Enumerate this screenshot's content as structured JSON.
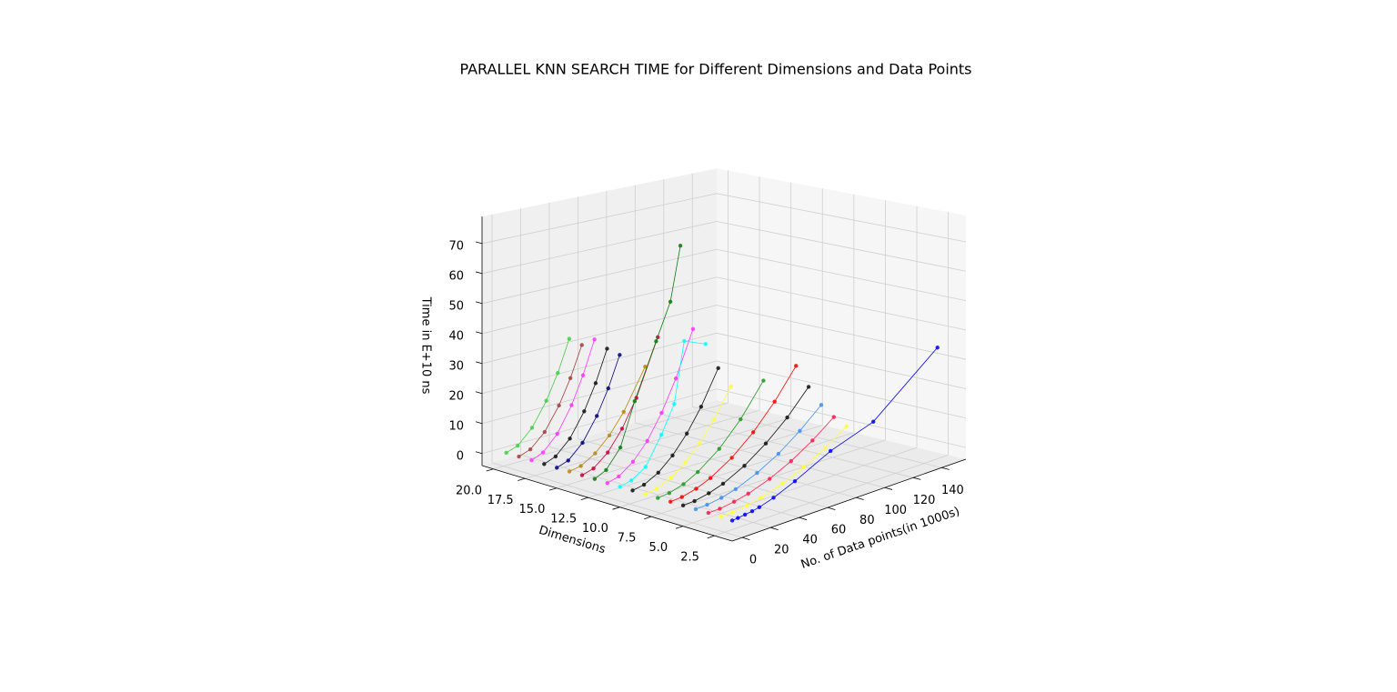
{
  "chart_data": {
    "type": "line3d",
    "title": "PARALLEL KNN SEARCH TIME for Different Dimensions and Data Points",
    "xlabel": "No. of Data points(in 1000s)",
    "ylabel": "Dimensions",
    "zlabel": "Time in E+10 ns",
    "xlim": [
      -7,
      157
    ],
    "xticks": [
      0,
      20,
      40,
      60,
      80,
      100,
      120,
      140
    ],
    "ylim": [
      1.1,
      20.9
    ],
    "yticks": [
      {
        "value": 2.5,
        "label": "2.5"
      },
      {
        "value": 5,
        "label": "5.0"
      },
      {
        "value": 7.5,
        "label": "7.5"
      },
      {
        "value": 10,
        "label": "10.0"
      },
      {
        "value": 12.5,
        "label": "12.5"
      },
      {
        "value": 15,
        "label": "15.0"
      },
      {
        "value": 17.5,
        "label": "17.5"
      },
      {
        "value": 20,
        "label": "20.0"
      }
    ],
    "zlim": [
      -4,
      79
    ],
    "zticks": [
      0,
      10,
      20,
      30,
      40,
      50,
      60,
      70
    ],
    "grid": true,
    "series": [
      {
        "dimension": 2,
        "color": "#0000ff",
        "x": [
          1,
          5,
          10,
          15,
          20,
          30,
          45,
          70,
          100,
          145
        ],
        "values": [
          0.2,
          0.4,
          0.7,
          1,
          1.5,
          3,
          6,
          12,
          17,
          35
        ]
      },
      {
        "dimension": 3,
        "color": "#ffff33",
        "x": [
          2,
          10,
          20,
          30,
          45,
          60,
          75,
          90
        ],
        "values": [
          0.1,
          0.2,
          0.8,
          1.8,
          4,
          7.1,
          11.1,
          16
        ]
      },
      {
        "dimension": 4,
        "color": "#ff1a4d",
        "x": [
          2,
          10,
          20,
          30,
          45,
          60,
          75,
          90
        ],
        "values": [
          0.1,
          0.2,
          0.9,
          2,
          4.5,
          8,
          12.5,
          18
        ]
      },
      {
        "dimension": 5,
        "color": "#3d8ef0",
        "x": [
          2,
          10,
          20,
          30,
          45,
          60,
          75,
          90
        ],
        "values": [
          0.1,
          0.3,
          1,
          2.3,
          5.3,
          9.3,
          14.6,
          21
        ]
      },
      {
        "dimension": 6,
        "color": "#111111",
        "x": [
          2,
          10,
          20,
          30,
          45,
          60,
          75,
          90
        ],
        "values": [
          0.1,
          0.3,
          1.3,
          2.9,
          6.5,
          11.6,
          18,
          26
        ]
      },
      {
        "dimension": 7,
        "color": "#ff0000",
        "x": [
          2,
          10,
          20,
          30,
          45,
          60,
          75,
          90
        ],
        "values": [
          0.1,
          0.4,
          1.6,
          3.6,
          8,
          14.2,
          22.2,
          32
        ]
      },
      {
        "dimension": 8,
        "color": "#1f9a1f",
        "x": [
          2,
          10,
          20,
          30,
          45,
          60,
          76
        ],
        "values": [
          0.1,
          0.5,
          1.9,
          4.4,
          9.8,
          17.4,
          28
        ]
      },
      {
        "dimension": 9,
        "color": "#ffff33",
        "x": [
          2,
          10,
          20,
          30,
          40,
          50,
          62
        ],
        "values": [
          0.1,
          0.7,
          2.8,
          6.3,
          11.2,
          17.6,
          27
        ]
      },
      {
        "dimension": 10,
        "color": "#111111",
        "x": [
          2,
          10,
          20,
          30,
          40,
          50,
          62
        ],
        "values": [
          0.1,
          0.8,
          3.3,
          7.5,
          13.3,
          20.8,
          32
        ]
      },
      {
        "dimension": 11,
        "color": "#00ffff",
        "x": [
          2,
          10,
          20,
          31,
          40,
          47,
          62
        ],
        "values": [
          0.1,
          1,
          4,
          13,
          22,
          42,
          39
        ]
      },
      {
        "dimension": 12,
        "color": "#ff33ff",
        "x": [
          2,
          10,
          20,
          30,
          40,
          50,
          62
        ],
        "values": [
          0.1,
          1.1,
          4.5,
          10,
          17.9,
          28,
          43
        ]
      },
      {
        "dimension": 13,
        "color": "#0a7a0a",
        "x": [
          2,
          10,
          20,
          30,
          45,
          55,
          62
        ],
        "values": [
          0.2,
          2,
          8,
          22,
          40,
          52,
          70
        ]
      },
      {
        "dimension": 14,
        "color": "#c8003c",
        "x": [
          2,
          10,
          20,
          30,
          40,
          55
        ],
        "values": [
          0.2,
          1.3,
          5.2,
          11.7,
          20.6,
          39
        ]
      },
      {
        "dimension": 15,
        "color": "#b8860b",
        "x": [
          2,
          10,
          20,
          30,
          40,
          55
        ],
        "values": [
          0.2,
          0.9,
          3.7,
          8.3,
          14.8,
          28
        ]
      },
      {
        "dimension": 16,
        "color": "#000080",
        "x": [
          2,
          10,
          20,
          30,
          38,
          46
        ],
        "values": [
          0.2,
          1.5,
          6,
          13.6,
          21.8,
          32
        ]
      },
      {
        "dimension": 17,
        "color": "#111111",
        "x": [
          2,
          10,
          20,
          30,
          38,
          46
        ],
        "values": [
          0.2,
          1.6,
          6.2,
          14,
          22.4,
          33
        ]
      },
      {
        "dimension": 18,
        "color": "#ff33ff",
        "x": [
          2,
          10,
          20,
          30,
          38,
          46
        ],
        "values": [
          0.2,
          1.7,
          6.6,
          14.9,
          23.9,
          35
        ]
      },
      {
        "dimension": 19,
        "color": "#a04040",
        "x": [
          2,
          10,
          20,
          30,
          38,
          46
        ],
        "values": [
          0.2,
          1.5,
          6,
          13.6,
          21.8,
          32
        ]
      },
      {
        "dimension": 20,
        "color": "#44cc44",
        "x": [
          2,
          10,
          20,
          30,
          38,
          46
        ],
        "values": [
          0.2,
          1.5,
          6.2,
          14,
          22.4,
          33
        ]
      }
    ]
  }
}
